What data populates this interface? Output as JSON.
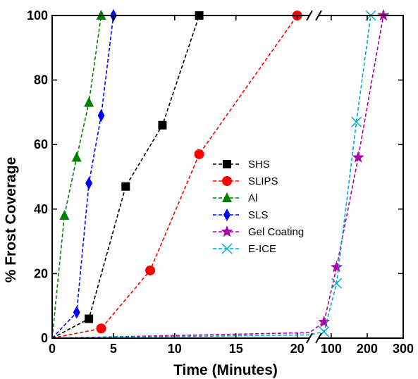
{
  "chart_data": {
    "type": "line",
    "xlabel": "Time (Minutes)",
    "ylabel": "% Frost Coverage",
    "ylim": [
      0,
      100
    ],
    "y_ticks": [
      "0",
      "20",
      "40",
      "60",
      "80",
      "100"
    ],
    "x_axis_left": {
      "range": [
        0,
        21
      ],
      "ticks": [
        "0",
        "5",
        "10",
        "15",
        "20"
      ]
    },
    "x_axis_right": {
      "range": [
        65,
        300
      ],
      "ticks": [
        "100",
        "200",
        "300"
      ]
    },
    "axis_break": "between 21 and 65 minutes",
    "legend_placement": "center",
    "series": [
      {
        "name": "SHS",
        "color": "#000000",
        "marker": "square",
        "points": [
          [
            0,
            0
          ],
          [
            3,
            6
          ],
          [
            6,
            47
          ],
          [
            9,
            66
          ],
          [
            12,
            100
          ]
        ]
      },
      {
        "name": "SLIPS",
        "color": "#ff0000",
        "marker": "circle",
        "points": [
          [
            0,
            0
          ],
          [
            4,
            3
          ],
          [
            8,
            21
          ],
          [
            12,
            57
          ],
          [
            20,
            100
          ]
        ]
      },
      {
        "name": "Al",
        "color": "#008000",
        "marker": "triangle",
        "points": [
          [
            0,
            0
          ],
          [
            1,
            38
          ],
          [
            2,
            56
          ],
          [
            3,
            73
          ],
          [
            4,
            100
          ]
        ]
      },
      {
        "name": "SLS",
        "color": "#0000ff",
        "marker": "diamond",
        "points": [
          [
            0,
            0
          ],
          [
            2,
            8
          ],
          [
            3,
            48
          ],
          [
            4,
            69
          ],
          [
            5,
            100
          ]
        ]
      },
      {
        "name": "Gel Coating",
        "color": "#aa00aa",
        "marker": "star",
        "points": [
          [
            0,
            0
          ],
          [
            21,
            1.7
          ],
          [
            80,
            5
          ],
          [
            115,
            22
          ],
          [
            175,
            56
          ],
          [
            245,
            100
          ]
        ]
      },
      {
        "name": "E-ICE",
        "color": "#00aacc",
        "marker": "x",
        "points": [
          [
            0,
            0
          ],
          [
            21,
            1
          ],
          [
            80,
            2
          ],
          [
            115,
            17
          ],
          [
            170,
            67
          ],
          [
            210,
            100
          ]
        ]
      }
    ]
  }
}
